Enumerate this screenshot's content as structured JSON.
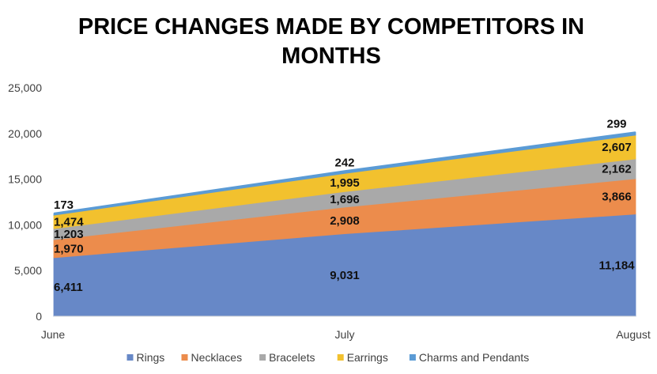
{
  "chart_data": {
    "type": "area",
    "stacked": true,
    "title_lines": [
      "PRICE CHANGES MADE BY COMPETITORS IN",
      "MONTHS"
    ],
    "categories": [
      "June",
      "July",
      "August"
    ],
    "ylim": [
      0,
      25000
    ],
    "yticks": [
      0,
      5000,
      10000,
      15000,
      20000,
      25000
    ],
    "ytick_labels": [
      "0",
      "5,000",
      "10,000",
      "15,000",
      "20,000",
      "25,000"
    ],
    "grid": false,
    "legend_position": "bottom",
    "series": [
      {
        "name": "Rings",
        "values": [
          6411,
          9031,
          11184
        ],
        "labels": [
          "6,411",
          "9,031",
          "11,184"
        ],
        "color": "#6788C7"
      },
      {
        "name": "Necklaces",
        "values": [
          1970,
          2908,
          3866
        ],
        "labels": [
          "1,970",
          "2,908",
          "3,866"
        ],
        "color": "#EC8C4C"
      },
      {
        "name": "Bracelets",
        "values": [
          1203,
          1696,
          2162
        ],
        "labels": [
          "1,203",
          "1,696",
          "2,162"
        ],
        "color": "#A9A9A9"
      },
      {
        "name": "Earrings",
        "values": [
          1474,
          1995,
          2607
        ],
        "labels": [
          "1,474",
          "1,995",
          "2,607"
        ],
        "color": "#F2C12E"
      },
      {
        "name": "Charms and Pendants",
        "values": [
          173,
          242,
          299
        ],
        "labels": [
          "173",
          "242",
          "299"
        ],
        "color": "#5B9BD5"
      }
    ]
  }
}
